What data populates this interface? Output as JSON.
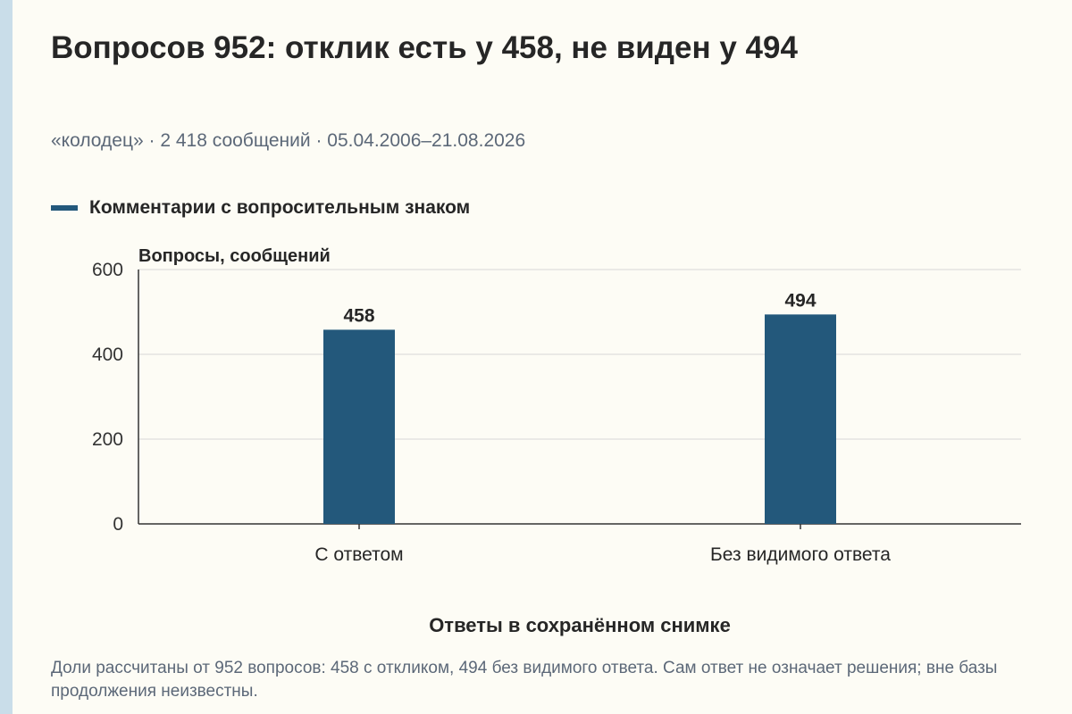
{
  "title": "Вопросов 952: отклик есть у 458, не виден у 494",
  "subtitle": "«колодец» · 2 418 сообщений · 05.04.2006–21.08.2026",
  "legend": {
    "label": "Комментарии с вопросительным знаком",
    "color": "#23587b"
  },
  "footnote": "Доли рассчитаны от 952 вопросов: 458 с откликом, 494 без видимого ответа. Сам ответ не означает решения; вне базы продолжения неизвестны.",
  "chart_data": {
    "type": "bar",
    "categories": [
      "С ответом",
      "Без видимого ответа"
    ],
    "series": [
      {
        "name": "Комментарии с вопросительным знаком",
        "values": [
          458,
          494
        ],
        "color": "#23587b"
      }
    ],
    "data_labels": [
      "458",
      "494"
    ],
    "xlabel": "Ответы в сохранённом снимке",
    "ylabel": "Вопросы, сообщений",
    "ylim": [
      0,
      600
    ],
    "yticks": [
      0,
      200,
      400,
      600
    ],
    "grid": true
  }
}
